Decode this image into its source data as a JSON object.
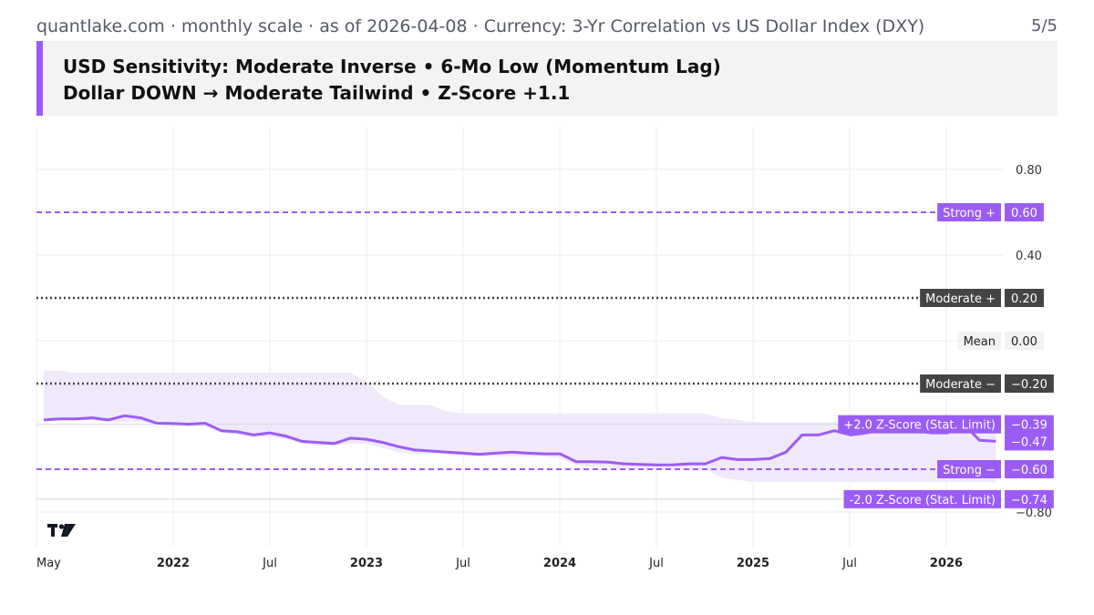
{
  "header": {
    "line": "quantlake.com · monthly scale · as of 2026-04-08 · Currency: 3-Yr Correlation vs US Dollar Index (DXY)",
    "page": "5/5"
  },
  "title": {
    "line1": "USD Sensitivity: Moderate Inverse • 6-Mo Low (Momentum Lag)",
    "line2": "Dollar DOWN → Moderate Tailwind • Z-Score +1.1"
  },
  "colors": {
    "series": "#9b5cf6",
    "strong": "#9b5cf6",
    "moderate": "#444444",
    "band": "#efe9fb",
    "grid": "#ececec",
    "axis_text": "#333333"
  },
  "chart_data": {
    "type": "line",
    "title": "USD Sensitivity: Moderate Inverse • 6-Mo Low (Momentum Lag)",
    "x_start": "2021-05",
    "x_tick_labels": [
      {
        "label": "May",
        "index": 0,
        "bold": false
      },
      {
        "label": "2022",
        "index": 8,
        "bold": true
      },
      {
        "label": "Jul",
        "index": 14,
        "bold": false
      },
      {
        "label": "2023",
        "index": 20,
        "bold": true
      },
      {
        "label": "Jul",
        "index": 26,
        "bold": false
      },
      {
        "label": "2024",
        "index": 32,
        "bold": true
      },
      {
        "label": "Jul",
        "index": 38,
        "bold": false
      },
      {
        "label": "2025",
        "index": 44,
        "bold": true
      },
      {
        "label": "Jul",
        "index": 50,
        "bold": false
      },
      {
        "label": "2026",
        "index": 56,
        "bold": true
      }
    ],
    "y_ticks": [
      "0.80",
      "0.40",
      "−0.80"
    ],
    "ylim": [
      -0.8,
      0.95
    ],
    "series": [
      {
        "name": "3-Yr Correlation vs DXY",
        "values": [
          -0.37,
          -0.365,
          -0.365,
          -0.36,
          -0.37,
          -0.35,
          -0.36,
          -0.385,
          -0.387,
          -0.39,
          -0.385,
          -0.42,
          -0.425,
          -0.44,
          -0.43,
          -0.445,
          -0.47,
          -0.475,
          -0.48,
          -0.455,
          -0.46,
          -0.475,
          -0.495,
          -0.51,
          -0.515,
          -0.52,
          -0.525,
          -0.53,
          -0.525,
          -0.52,
          -0.525,
          -0.528,
          -0.528,
          -0.565,
          -0.565,
          -0.567,
          -0.575,
          -0.578,
          -0.58,
          -0.579,
          -0.575,
          -0.575,
          -0.545,
          -0.555,
          -0.555,
          -0.55,
          -0.52,
          -0.44,
          -0.44,
          -0.42,
          -0.44,
          -0.43,
          -0.41,
          -0.41,
          -0.42,
          -0.43,
          -0.43,
          -0.39,
          -0.465,
          -0.47
        ]
      }
    ],
    "band": {
      "upper": [
        -0.14,
        -0.14,
        -0.15,
        -0.15,
        -0.15,
        -0.15,
        -0.15,
        -0.15,
        -0.15,
        -0.15,
        -0.15,
        -0.15,
        -0.15,
        -0.15,
        -0.15,
        -0.15,
        -0.15,
        -0.15,
        -0.15,
        -0.15,
        -0.19,
        -0.26,
        -0.3,
        -0.3,
        -0.3,
        -0.33,
        -0.34,
        -0.34,
        -0.34,
        -0.34,
        -0.34,
        -0.34,
        -0.34,
        -0.34,
        -0.34,
        -0.34,
        -0.34,
        -0.34,
        -0.34,
        -0.34,
        -0.34,
        -0.34,
        -0.36,
        -0.37,
        -0.38,
        -0.38,
        -0.38,
        -0.38,
        -0.38,
        -0.38,
        -0.38,
        -0.38,
        -0.38,
        -0.38,
        -0.38,
        -0.38,
        -0.38,
        -0.38,
        -0.38,
        -0.38
      ],
      "lower": [
        -0.37,
        -0.37,
        -0.37,
        -0.37,
        -0.38,
        -0.38,
        -0.38,
        -0.39,
        -0.39,
        -0.39,
        -0.4,
        -0.43,
        -0.44,
        -0.45,
        -0.45,
        -0.46,
        -0.48,
        -0.49,
        -0.49,
        -0.48,
        -0.48,
        -0.5,
        -0.52,
        -0.53,
        -0.53,
        -0.53,
        -0.54,
        -0.54,
        -0.54,
        -0.54,
        -0.54,
        -0.54,
        -0.55,
        -0.58,
        -0.59,
        -0.59,
        -0.6,
        -0.6,
        -0.6,
        -0.6,
        -0.6,
        -0.6,
        -0.64,
        -0.65,
        -0.66,
        -0.66,
        -0.66,
        -0.66,
        -0.66,
        -0.66,
        -0.66,
        -0.66,
        -0.66,
        -0.66,
        -0.66,
        -0.66,
        -0.66,
        -0.66,
        -0.66,
        -0.66
      ]
    },
    "reference_lines": [
      {
        "name": "Strong +",
        "value": 0.6,
        "value_label": "0.60",
        "style": "dashed",
        "kind": "strong"
      },
      {
        "name": "Moderate +",
        "value": 0.2,
        "value_label": "0.20",
        "style": "dotted",
        "kind": "moderate"
      },
      {
        "name": "Mean",
        "value": 0.0,
        "value_label": "0.00",
        "style": "none",
        "kind": "mean"
      },
      {
        "name": "Moderate −",
        "value": -0.2,
        "value_label": "−0.20",
        "style": "dotted",
        "kind": "moderate"
      },
      {
        "name": "Strong −",
        "value": -0.6,
        "value_label": "−0.60",
        "style": "dashed",
        "kind": "strong"
      },
      {
        "name": "+2.0 Z-Score (Stat. Limit)",
        "value": -0.39,
        "value_label": "−0.39",
        "style": "faint",
        "kind": "zscore"
      },
      {
        "name": "-2.0 Z-Score (Stat. Limit)",
        "value": -0.74,
        "value_label": "−0.74",
        "style": "faint",
        "kind": "zscore"
      }
    ],
    "last_value_label": "−0.47"
  }
}
